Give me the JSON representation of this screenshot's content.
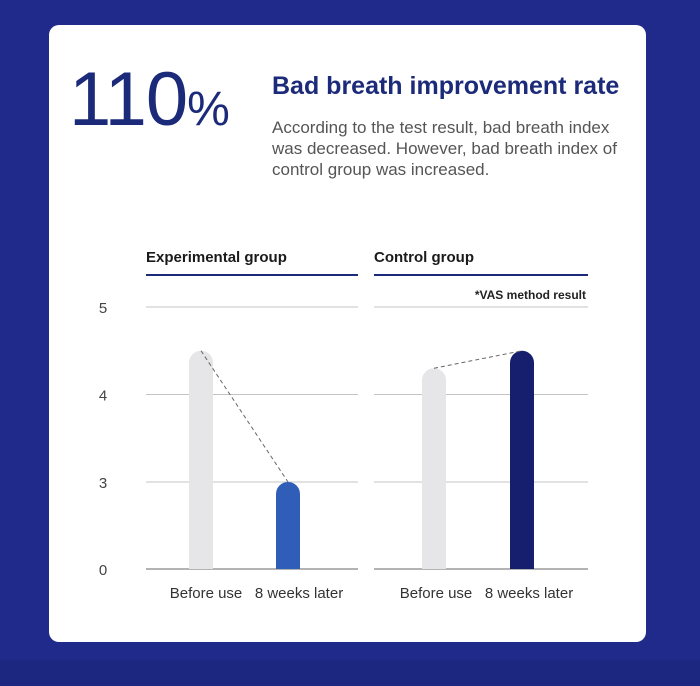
{
  "header": {
    "big_number": "110",
    "big_unit": "%",
    "headline": "Bad breath improvement rate",
    "description": "According to the test result, bad breath index was decreased. However, bad breath index of control group was increased."
  },
  "colors": {
    "background": "#1f2a8a",
    "card": "#ffffff",
    "title_text": "#1c2a7a",
    "before_bar": "#e6e6e8",
    "experimental_after_bar": "#2f5db8",
    "control_after_bar": "#161f6e",
    "grid": "#c4c4c4",
    "group_rule": "#1c2a7a"
  },
  "chart_data": [
    {
      "type": "bar",
      "title": "Experimental group",
      "categories": [
        "Before use",
        "8 weeks later"
      ],
      "values": [
        4.5,
        3.0
      ],
      "yticks": [
        0,
        3,
        4,
        5
      ],
      "note": "",
      "trend_line": "dashed"
    },
    {
      "type": "bar",
      "title": "Control group",
      "categories": [
        "Before use",
        "8 weeks later"
      ],
      "values": [
        4.3,
        4.5
      ],
      "yticks": [
        0,
        3,
        4,
        5
      ],
      "note": "*VAS method result",
      "trend_line": "dashed"
    }
  ]
}
